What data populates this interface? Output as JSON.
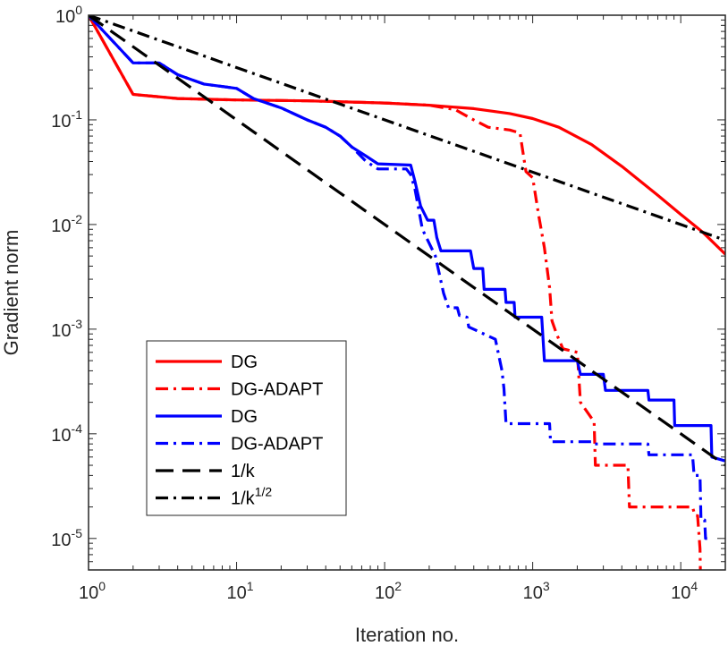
{
  "chart_data": {
    "type": "line",
    "title": "",
    "xlabel": "Iteration no.",
    "ylabel": "Gradient norm",
    "xscale": "log",
    "yscale": "log",
    "xlim": [
      1,
      20000
    ],
    "ylim": [
      5e-06,
      1
    ],
    "grid": false,
    "legend_position": "bottom-left",
    "x_ticks": [
      {
        "base": "10",
        "exp": "0"
      },
      {
        "base": "10",
        "exp": "1"
      },
      {
        "base": "10",
        "exp": "2"
      },
      {
        "base": "10",
        "exp": "3"
      },
      {
        "base": "10",
        "exp": "4"
      }
    ],
    "y_ticks": [
      {
        "base": "10",
        "exp": "0"
      },
      {
        "base": "10",
        "exp": "-1"
      },
      {
        "base": "10",
        "exp": "-2"
      },
      {
        "base": "10",
        "exp": "-3"
      },
      {
        "base": "10",
        "exp": "-4"
      },
      {
        "base": "10",
        "exp": "-5"
      }
    ],
    "series": [
      {
        "name": "DG",
        "color": "#ff0000",
        "style": "solid",
        "points": [
          [
            1,
            1
          ],
          [
            2,
            0.175
          ],
          [
            4,
            0.16
          ],
          [
            10,
            0.155
          ],
          [
            30,
            0.152
          ],
          [
            100,
            0.145
          ],
          [
            200,
            0.138
          ],
          [
            400,
            0.128
          ],
          [
            700,
            0.115
          ],
          [
            1000,
            0.103
          ],
          [
            1500,
            0.085
          ],
          [
            2500,
            0.058
          ],
          [
            4000,
            0.036
          ],
          [
            7000,
            0.019
          ],
          [
            10000,
            0.0125
          ],
          [
            14000,
            0.0085
          ],
          [
            20000,
            0.0052
          ]
        ]
      },
      {
        "name": "DG-ADAPT",
        "color": "#ff0000",
        "style": "dashdot",
        "points": [
          [
            1,
            1
          ],
          [
            2,
            0.175
          ],
          [
            4,
            0.16
          ],
          [
            10,
            0.155
          ],
          [
            30,
            0.152
          ],
          [
            100,
            0.145
          ],
          [
            200,
            0.138
          ],
          [
            300,
            0.125
          ],
          [
            400,
            0.1
          ],
          [
            500,
            0.085
          ],
          [
            700,
            0.08
          ],
          [
            820,
            0.075
          ],
          [
            900,
            0.032
          ],
          [
            1000,
            0.028
          ],
          [
            1100,
            0.012
          ],
          [
            1200,
            0.006
          ],
          [
            1300,
            0.0025
          ],
          [
            1350,
            0.0012
          ],
          [
            1450,
            0.0009
          ],
          [
            1600,
            0.00065
          ],
          [
            2000,
            0.0006
          ],
          [
            2100,
            0.0002
          ],
          [
            2600,
            0.00013
          ],
          [
            2650,
            5e-05
          ],
          [
            4400,
            5e-05
          ],
          [
            4500,
            2e-05
          ],
          [
            12000,
            2e-05
          ],
          [
            12500,
            1.65e-05
          ],
          [
            13000,
            1.65e-05
          ],
          [
            13500,
            8e-06
          ],
          [
            13600,
            4e-06
          ]
        ]
      },
      {
        "name": "DG",
        "color": "#0000ff",
        "style": "solid",
        "points": [
          [
            1,
            1
          ],
          [
            2,
            0.35
          ],
          [
            3,
            0.35
          ],
          [
            4,
            0.27
          ],
          [
            6,
            0.22
          ],
          [
            10,
            0.2
          ],
          [
            13,
            0.16
          ],
          [
            20,
            0.13
          ],
          [
            30,
            0.1
          ],
          [
            40,
            0.085
          ],
          [
            50,
            0.07
          ],
          [
            60,
            0.055
          ],
          [
            75,
            0.045
          ],
          [
            90,
            0.038
          ],
          [
            150,
            0.037
          ],
          [
            160,
            0.026
          ],
          [
            175,
            0.015
          ],
          [
            195,
            0.011
          ],
          [
            215,
            0.011
          ],
          [
            225,
            0.0075
          ],
          [
            240,
            0.0056
          ],
          [
            380,
            0.0056
          ],
          [
            400,
            0.0038
          ],
          [
            460,
            0.0038
          ],
          [
            470,
            0.0024
          ],
          [
            650,
            0.0024
          ],
          [
            660,
            0.0018
          ],
          [
            750,
            0.0018
          ],
          [
            760,
            0.0013
          ],
          [
            1150,
            0.0013
          ],
          [
            1200,
            0.0005
          ],
          [
            2000,
            0.0005
          ],
          [
            2100,
            0.00037
          ],
          [
            3000,
            0.00037
          ],
          [
            3100,
            0.00026
          ],
          [
            6000,
            0.00026
          ],
          [
            6100,
            0.00021
          ],
          [
            9000,
            0.00021
          ],
          [
            9100,
            0.00012
          ],
          [
            16000,
            0.00012
          ],
          [
            16200,
            6e-05
          ],
          [
            20000,
            5.5e-05
          ]
        ]
      },
      {
        "name": "DG-ADAPT",
        "color": "#0000ff",
        "style": "dashdot",
        "points": [
          [
            1,
            1
          ],
          [
            2,
            0.35
          ],
          [
            3,
            0.35
          ],
          [
            4,
            0.27
          ],
          [
            6,
            0.22
          ],
          [
            10,
            0.2
          ],
          [
            13,
            0.16
          ],
          [
            20,
            0.13
          ],
          [
            30,
            0.1
          ],
          [
            40,
            0.085
          ],
          [
            50,
            0.07
          ],
          [
            60,
            0.055
          ],
          [
            75,
            0.04
          ],
          [
            90,
            0.034
          ],
          [
            140,
            0.034
          ],
          [
            150,
            0.03
          ],
          [
            160,
            0.022
          ],
          [
            180,
            0.009
          ],
          [
            220,
            0.005
          ],
          [
            250,
            0.0022
          ],
          [
            270,
            0.0016
          ],
          [
            310,
            0.0016
          ],
          [
            320,
            0.00135
          ],
          [
            360,
            0.0013
          ],
          [
            370,
            0.00105
          ],
          [
            560,
            0.0008
          ],
          [
            620,
            0.0004
          ],
          [
            640,
            0.00027
          ],
          [
            660,
            0.000125
          ],
          [
            1300,
            0.000125
          ],
          [
            1320,
            8.4e-05
          ],
          [
            2500,
            8.4e-05
          ],
          [
            2550,
            8e-05
          ],
          [
            6000,
            8e-05
          ],
          [
            6100,
            6.3e-05
          ],
          [
            12000,
            6.3e-05
          ],
          [
            12300,
            4e-05
          ],
          [
            13500,
            4e-05
          ],
          [
            13700,
            1.5e-05
          ],
          [
            14500,
            1.5e-05
          ],
          [
            14700,
            1e-05
          ],
          [
            16000,
            1e-05
          ]
        ]
      },
      {
        "name": "1/k",
        "color": "#000000",
        "style": "dashed",
        "points": [
          [
            1,
            1
          ],
          [
            20000,
            5e-05
          ]
        ]
      },
      {
        "name": "1/k",
        "name_exp": "1/2",
        "color": "#000000",
        "style": "dashdot",
        "points": [
          [
            1,
            1
          ],
          [
            20000,
            0.00707
          ]
        ]
      }
    ]
  }
}
